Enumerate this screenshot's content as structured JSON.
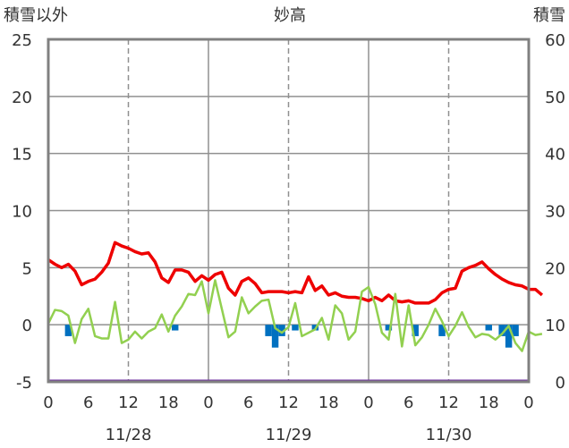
{
  "chart_data": {
    "type": "bar+line",
    "title": "妙高",
    "left_axis_label": "積雪以外",
    "right_axis_label": "積雪",
    "y_left": {
      "min": -5,
      "max": 25,
      "ticks": [
        25,
        20,
        15,
        10,
        5,
        0,
        -5
      ]
    },
    "y_right": {
      "min": 0,
      "max": 60,
      "ticks": [
        60,
        50,
        40,
        30,
        20,
        10,
        0
      ]
    },
    "x_tick_labels": [
      "0",
      "6",
      "12",
      "18",
      "0",
      "6",
      "12",
      "18",
      "0",
      "6",
      "12",
      "18",
      "0"
    ],
    "x_tick_hours": [
      0,
      6,
      12,
      18,
      24,
      30,
      36,
      42,
      48,
      54,
      60,
      66,
      72
    ],
    "day_labels": [
      {
        "text": "11/28",
        "hour": 12
      },
      {
        "text": "11/29",
        "hour": 36
      },
      {
        "text": "11/30",
        "hour": 60
      }
    ],
    "grid": {
      "dashed_hours": [
        12,
        36,
        60
      ],
      "solid_hours": [
        24,
        48
      ]
    },
    "colors": {
      "red_series": "#ee0000",
      "green_series": "#92d050",
      "bars": "#0070c0",
      "snow_depth": "#7030a0",
      "frame": "#808080"
    },
    "series": [
      {
        "axis": "left",
        "color": "#ee0000",
        "values": [
          5.7,
          5.3,
          5.0,
          5.3,
          4.7,
          3.5,
          3.8,
          4.0,
          4.6,
          5.4,
          7.2,
          6.9,
          6.7,
          6.4,
          6.2,
          6.3,
          5.5,
          4.1,
          3.7,
          4.8,
          4.8,
          4.6,
          3.8,
          4.3,
          3.9,
          4.4,
          4.6,
          3.2,
          2.6,
          3.8,
          4.1,
          3.6,
          2.8,
          2.9,
          2.9,
          2.9,
          2.8,
          2.9,
          2.8,
          4.2,
          3.0,
          3.4,
          2.6,
          2.8,
          2.5,
          2.4,
          2.4,
          2.3,
          2.1,
          2.4,
          2.1,
          2.6,
          2.1,
          2.0,
          2.1,
          1.9,
          1.9,
          1.9,
          2.2,
          2.8,
          3.1,
          3.2,
          4.7,
          5.0,
          5.2,
          5.5,
          4.9,
          4.4,
          4.0,
          3.7,
          3.5,
          3.4,
          3.1,
          3.1,
          2.6
        ]
      },
      {
        "axis": "left",
        "color": "#92d050",
        "values": [
          0.1,
          1.3,
          1.2,
          0.8,
          -1.6,
          0.5,
          1.4,
          -1.0,
          -1.2,
          -1.2,
          2.0,
          -1.6,
          -1.3,
          -0.6,
          -1.2,
          -0.6,
          -0.3,
          0.9,
          -0.6,
          0.8,
          1.6,
          2.7,
          2.6,
          3.8,
          1.0,
          3.9,
          1.4,
          -1.1,
          -0.6,
          2.4,
          1.0,
          1.6,
          2.1,
          2.2,
          -0.3,
          -0.7,
          -0.2,
          1.9,
          -1.0,
          -0.7,
          -0.4,
          0.6,
          -1.3,
          1.7,
          1.0,
          -1.3,
          -0.6,
          2.9,
          3.3,
          1.8,
          -0.7,
          -1.3,
          2.7,
          -1.9,
          1.7,
          -1.8,
          -1.1,
          0.0,
          1.4,
          0.3,
          -1.0,
          -0.1,
          1.1,
          -0.2,
          -1.1,
          -0.8,
          -0.9,
          -1.3,
          -0.8,
          -0.1,
          -1.6,
          -2.3,
          -0.6,
          -0.9,
          -0.8
        ]
      },
      {
        "axis": "left",
        "color": "#0070c0",
        "kind": "bar",
        "bars": [
          {
            "hour": 3,
            "value": -1.0
          },
          {
            "hour": 19,
            "value": -0.5
          },
          {
            "hour": 33,
            "value": -1.0
          },
          {
            "hour": 34,
            "value": -2.0
          },
          {
            "hour": 35,
            "value": -1.0
          },
          {
            "hour": 37,
            "value": -0.5
          },
          {
            "hour": 40,
            "value": -0.5
          },
          {
            "hour": 51,
            "value": -0.5
          },
          {
            "hour": 55,
            "value": -1.0
          },
          {
            "hour": 59,
            "value": -1.0
          },
          {
            "hour": 66,
            "value": -0.5
          },
          {
            "hour": 68,
            "value": -1.0
          },
          {
            "hour": 69,
            "value": -2.0
          },
          {
            "hour": 70,
            "value": -1.0
          }
        ]
      },
      {
        "axis": "right",
        "color": "#7030a0",
        "values_constant": 0
      }
    ]
  }
}
